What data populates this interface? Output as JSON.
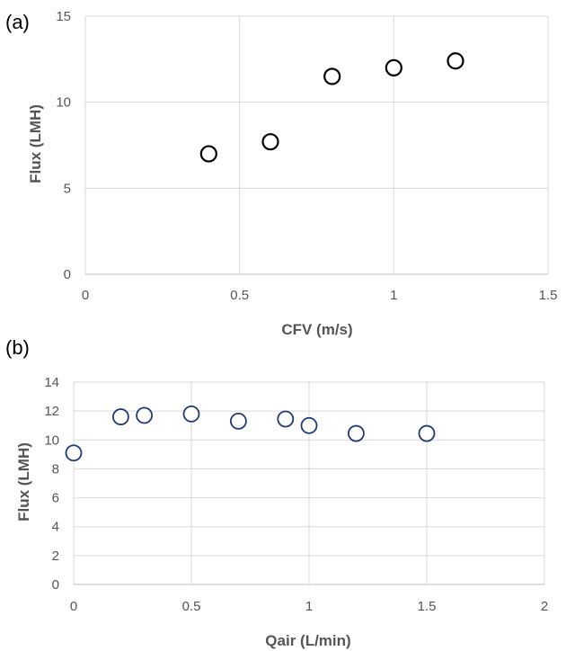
{
  "chart_data": [
    {
      "type": "scatter",
      "panel_label": "(a)",
      "xlabel": "CFV (m/s)",
      "ylabel": "Flux (LMH)",
      "xlim": [
        0,
        1.5
      ],
      "ylim": [
        0,
        15
      ],
      "xticks": [
        "0",
        "0.5",
        "1",
        "1.5"
      ],
      "yticks": [
        "0",
        "5",
        "10",
        "15"
      ],
      "grid": true,
      "marker_color": "#000000",
      "series": [
        {
          "x": [
            0.4,
            0.6,
            0.8,
            1.0,
            1.2
          ],
          "y": [
            7.0,
            7.7,
            11.5,
            12.0,
            12.4
          ]
        }
      ]
    },
    {
      "type": "scatter",
      "panel_label": "(b)",
      "xlabel": "Qair (L/min)",
      "ylabel": "Flux (LMH)",
      "xlim": [
        0,
        2
      ],
      "ylim": [
        0,
        14
      ],
      "xticks": [
        "0",
        "0.5",
        "1",
        "1.5",
        "2"
      ],
      "yticks": [
        "0",
        "2",
        "4",
        "6",
        "8",
        "10",
        "12",
        "14"
      ],
      "grid": true,
      "marker_color": "#1f3a7a",
      "series": [
        {
          "x": [
            0,
            0.2,
            0.3,
            0.5,
            0.7,
            0.9,
            1.0,
            1.2,
            1.5
          ],
          "y": [
            9.1,
            11.6,
            11.7,
            11.8,
            11.3,
            11.45,
            11.0,
            10.45,
            10.45
          ]
        }
      ]
    }
  ]
}
